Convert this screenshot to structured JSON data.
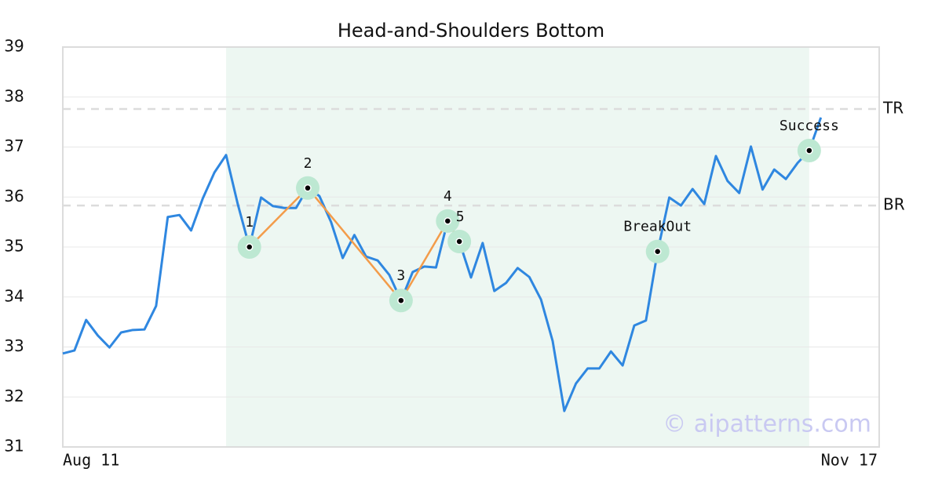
{
  "chart_data": {
    "type": "line",
    "title": "Head-and-Shoulders Bottom",
    "x": [
      0,
      1,
      2,
      3,
      4,
      5,
      6,
      7,
      8,
      9,
      10,
      11,
      12,
      13,
      14,
      15,
      16,
      17,
      18,
      19,
      20,
      21,
      22,
      23,
      24,
      25,
      26,
      27,
      28,
      29,
      30,
      31,
      32,
      33,
      34,
      35,
      36,
      37,
      38,
      39,
      40,
      41,
      42,
      43,
      44,
      45,
      46,
      47,
      48,
      49,
      50,
      51,
      52,
      53,
      54,
      55,
      56,
      57,
      58,
      59,
      60,
      61,
      62,
      63,
      64,
      65
    ],
    "series": [
      {
        "color": "#2f87e0",
        "values": [
          32.87,
          32.93,
          33.54,
          33.23,
          32.99,
          33.29,
          33.34,
          33.35,
          33.82,
          35.6,
          35.64,
          35.33,
          35.97,
          36.49,
          36.84,
          35.86,
          35.0,
          35.99,
          35.82,
          35.78,
          35.78,
          36.18,
          36.02,
          35.5,
          34.78,
          35.24,
          34.81,
          34.73,
          34.44,
          33.93,
          34.5,
          34.61,
          34.59,
          35.52,
          35.11,
          34.39,
          35.08,
          34.12,
          34.28,
          34.58,
          34.4,
          33.95,
          33.12,
          31.72,
          32.27,
          32.57,
          32.57,
          32.91,
          32.63,
          33.43,
          33.53,
          34.91,
          35.99,
          35.83,
          36.16,
          35.86,
          36.82,
          36.32,
          36.08,
          37.01,
          36.15,
          36.55,
          36.36,
          36.68,
          36.93,
          37.59
        ]
      }
    ],
    "pattern_color": "#f39c4a",
    "marker_color": "#bde8d2",
    "pattern_points": [
      {
        "label": "1",
        "x": 16,
        "y": 35.0
      },
      {
        "label": "2",
        "x": 21,
        "y": 36.18
      },
      {
        "label": "3",
        "x": 29,
        "y": 33.93
      },
      {
        "label": "4",
        "x": 33,
        "y": 35.52
      },
      {
        "label": "5",
        "x": 34,
        "y": 35.11
      }
    ],
    "events": [
      {
        "label": "BreakOut",
        "x": 51,
        "y": 34.91
      },
      {
        "label": "Success",
        "x": 64,
        "y": 36.93
      }
    ],
    "shaded_region": {
      "x": [
        14,
        64
      ],
      "color": "#edf7f2"
    },
    "levels": [
      {
        "label": "TR",
        "value": 37.76
      },
      {
        "label": "BR",
        "value": 35.83
      }
    ],
    "xlim": [
      0,
      70
    ],
    "xticks": [
      {
        "value": 0,
        "label": "Aug 11"
      },
      {
        "value": 70,
        "label": "Nov 17"
      }
    ],
    "ylim": [
      31,
      39
    ],
    "yticks": [
      31,
      32,
      33,
      34,
      35,
      36,
      37,
      38,
      39
    ],
    "grid": true,
    "watermark": "© aipatterns.com"
  }
}
